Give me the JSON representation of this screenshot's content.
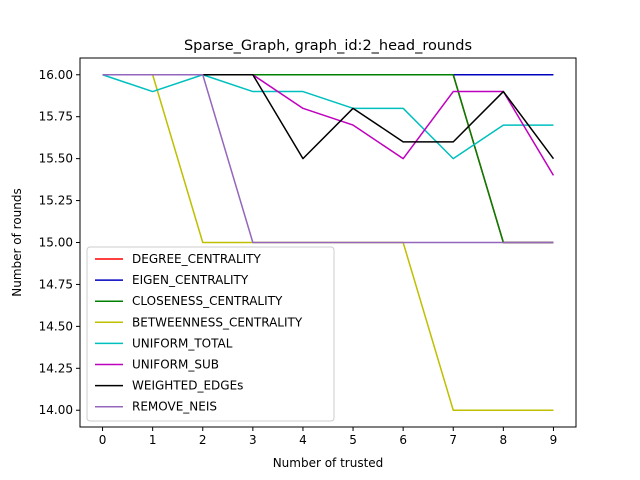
{
  "chart_data": {
    "type": "line",
    "title": "Sparse_Graph, graph_id:2_head_rounds",
    "xlabel": "Number of trusted",
    "ylabel": "Number of rounds",
    "x": [
      0,
      1,
      2,
      3,
      4,
      5,
      6,
      7,
      8,
      9
    ],
    "xlim": [
      -0.45,
      9.45
    ],
    "ylim": [
      13.9,
      16.1
    ],
    "xticks": [
      "0",
      "1",
      "2",
      "3",
      "4",
      "5",
      "6",
      "7",
      "8",
      "9"
    ],
    "yticks": [
      "14.00",
      "14.25",
      "14.50",
      "14.75",
      "15.00",
      "15.25",
      "15.50",
      "15.75",
      "16.00"
    ],
    "grid": false,
    "legend_position": "lower-left",
    "series": [
      {
        "name": "DEGREE_CENTRALITY",
        "color": "#ff0000",
        "values": [
          16,
          16,
          16,
          16,
          16,
          16,
          16,
          16,
          15,
          15
        ]
      },
      {
        "name": "EIGEN_CENTRALITY",
        "color": "#0000bf",
        "values": [
          16,
          16,
          16,
          16,
          16,
          16,
          16,
          16,
          16,
          16
        ]
      },
      {
        "name": "CLOSENESS_CENTRALITY",
        "color": "#008000",
        "values": [
          16,
          16,
          16,
          16,
          16,
          16,
          16,
          16,
          15,
          15
        ]
      },
      {
        "name": "BETWEENNESS_CENTRALITY",
        "color": "#bfbf00",
        "values": [
          16,
          16,
          15,
          15,
          15,
          15,
          15,
          14,
          14,
          14
        ]
      },
      {
        "name": "UNIFORM_TOTAL",
        "color": "#00bfbf",
        "values": [
          16,
          15.9,
          16,
          15.9,
          15.9,
          15.8,
          15.8,
          15.5,
          15.7,
          15.7
        ]
      },
      {
        "name": "UNIFORM_SUB",
        "color": "#bf00bf",
        "values": [
          16,
          16,
          16,
          16,
          15.8,
          15.7,
          15.5,
          15.9,
          15.9,
          15.4
        ]
      },
      {
        "name": "WEIGHTED_EDGEs",
        "color": "#000000",
        "values": [
          16,
          16,
          16,
          16,
          15.5,
          15.8,
          15.6,
          15.6,
          15.9,
          15.5
        ]
      },
      {
        "name": "REMOVE_NEIS",
        "color": "#9467bd",
        "values": [
          16,
          16,
          16,
          15,
          15,
          15,
          15,
          15,
          15,
          15
        ]
      }
    ]
  }
}
